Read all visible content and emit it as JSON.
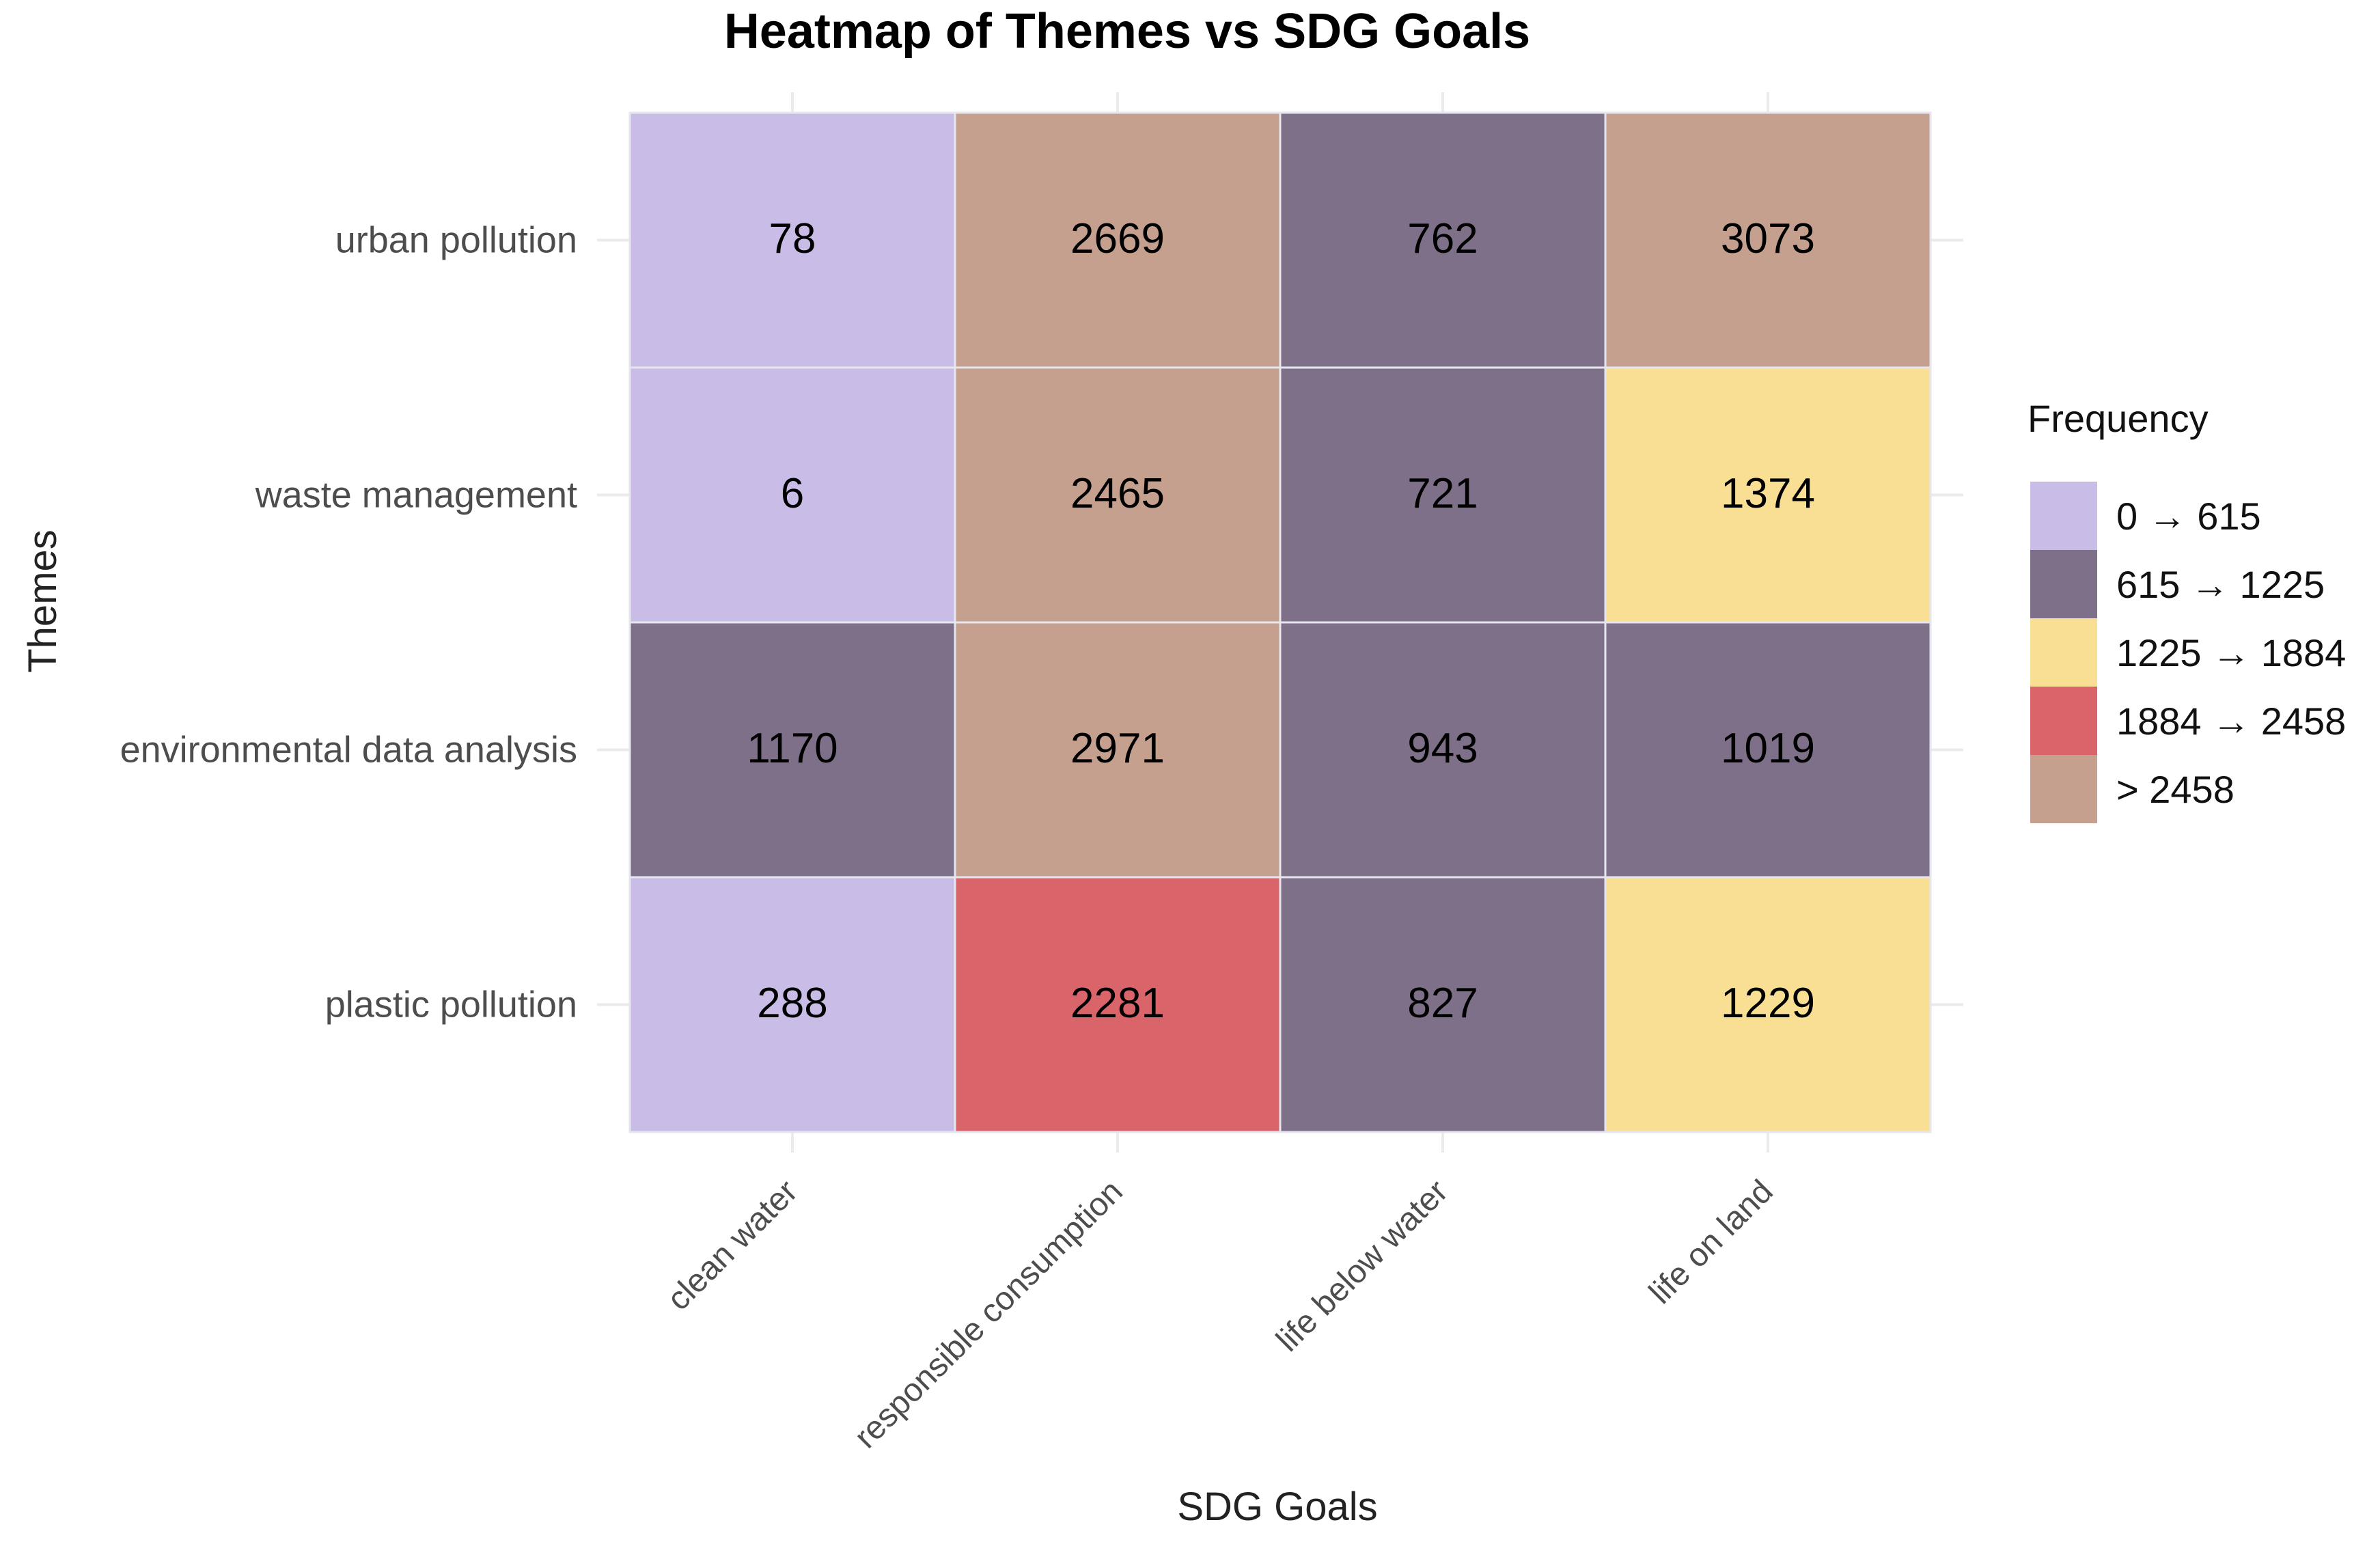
{
  "chart_data": {
    "type": "heatmap",
    "title": "Heatmap of Themes vs SDG Goals",
    "xlabel": "SDG Goals",
    "ylabel": "Themes",
    "x_categories": [
      "clean water",
      "responsible consumption",
      "life below water",
      "life on land"
    ],
    "y_categories": [
      "urban pollution",
      "waste management",
      "environmental data analysis",
      "plastic pollution"
    ],
    "values": [
      [
        78,
        2669,
        762,
        3073
      ],
      [
        6,
        2465,
        721,
        1374
      ],
      [
        1170,
        2971,
        943,
        1019
      ],
      [
        288,
        2281,
        827,
        1229
      ]
    ],
    "legend": {
      "title": "Frequency",
      "placement": "right",
      "bins": [
        {
          "min": 0,
          "max": 615,
          "label_from": "0",
          "label_to": "615",
          "color": "#c9bce6"
        },
        {
          "min": 615,
          "max": 1225,
          "label_from": "615",
          "label_to": "1225",
          "color": "#7d7088"
        },
        {
          "min": 1225,
          "max": 1884,
          "label_from": "1225",
          "label_to": "1884",
          "color": "#f8df93"
        },
        {
          "min": 1884,
          "max": 2458,
          "label_from": "1884",
          "label_to": "2458",
          "color": "#d9646a"
        },
        {
          "min": 2458,
          "max": null,
          "label_from": "> 2458",
          "label_to": "",
          "color": "#c6a08e"
        }
      ],
      "arrow": "→"
    },
    "grid": true
  }
}
